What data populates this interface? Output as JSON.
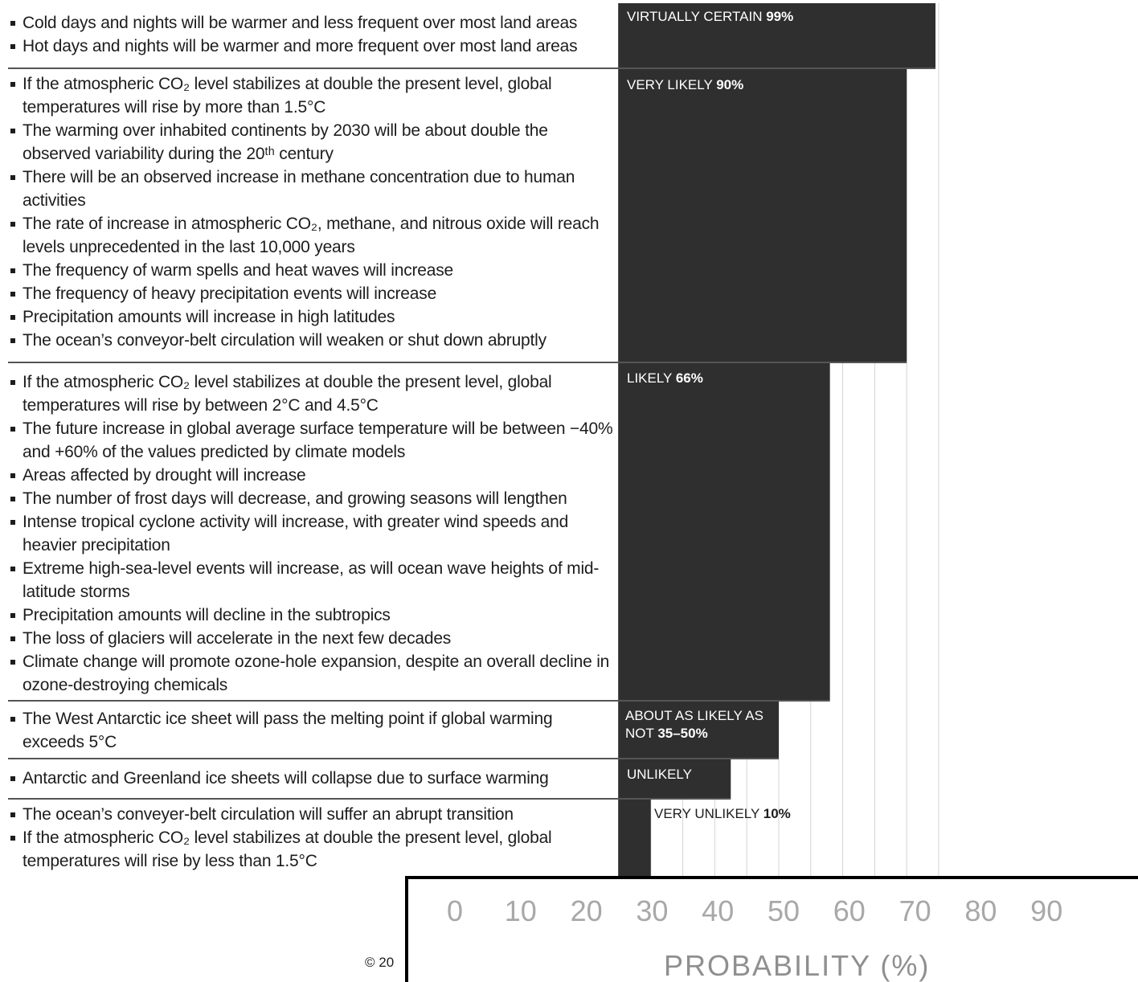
{
  "chart_data": {
    "type": "bar",
    "orientation": "horizontal",
    "xlabel": "PROBABILITY (%)",
    "xlim": [
      0,
      100
    ],
    "x_ticks": [
      0,
      10,
      20,
      30,
      40,
      50,
      60,
      70,
      80,
      90
    ],
    "grid": true,
    "categories": [
      {
        "label": "VIRTUALLY CERTAIN",
        "value_label": "99%",
        "value": 99,
        "items": [
          "Cold days and nights will be warmer and less frequent over most land areas",
          "Hot days and nights will be warmer and more frequent over most land areas"
        ]
      },
      {
        "label": "VERY LIKELY",
        "value_label": "90%",
        "value": 90,
        "items": [
          "If the atmospheric CO₂ level stabilizes at double the present level, global temperatures will rise by more than 1.5°C",
          "The warming over inhabited continents by 2030 will be about double the observed variability during the 20ᵗʰ century",
          "There will be an observed increase in methane concentration due to human activities",
          "The rate of increase in atmospheric CO₂, methane, and nitrous oxide will reach levels unprecedented in the last 10,000 years",
          "The frequency of warm spells and heat waves will increase",
          "The frequency of heavy precipitation events will increase",
          "Precipitation amounts will increase in high latitudes",
          "The ocean’s conveyor-belt circulation will weaken or shut down abruptly"
        ]
      },
      {
        "label": "LIKELY",
        "value_label": "66%",
        "value": 66,
        "items": [
          "If the atmospheric CO₂ level stabilizes at double the present level, global temperatures will rise by between 2°C and 4.5°C",
          "The future increase in global average surface temperature will be between −40% and +60% of the values predicted by climate models",
          "Areas affected by drought will increase",
          "The number of frost days will decrease, and growing seasons will lengthen",
          "Intense tropical cyclone activity will increase, with greater wind speeds and heavier precipitation",
          "Extreme high-sea-level events will increase, as will ocean wave heights of mid-latitude storms",
          "Precipitation amounts will decline in the subtropics",
          "The loss of glaciers will accelerate in the next few decades",
          "Climate change will promote ozone-hole expansion, despite an overall decline in ozone-destroying chemicals"
        ]
      },
      {
        "label": "ABOUT AS LIKELY AS NOT",
        "value_label": "35–50%",
        "value": 50,
        "items": [
          "The West Antarctic ice sheet will pass the melting point if global warming exceeds 5°C"
        ]
      },
      {
        "label": "UNLIKELY",
        "value_label": "",
        "value": 35,
        "items": [
          "Antarctic and Greenland ice sheets will collapse due to surface warming"
        ]
      },
      {
        "label": "VERY UNLIKELY",
        "value_label": "10%",
        "value": 10,
        "items": [
          "The ocean’s conveyer-belt circulation will suffer an abrupt transition",
          "If the atmospheric CO₂ level stabilizes at double the present level, global temperatures will rise by less than 1.5°C"
        ]
      }
    ]
  },
  "footer": {
    "copyright": "© 20"
  },
  "colors": {
    "bar": "#2f2f2f",
    "grid": "#d4d4d4",
    "separator": "#555555",
    "tick_text": "#a8a8a8"
  }
}
